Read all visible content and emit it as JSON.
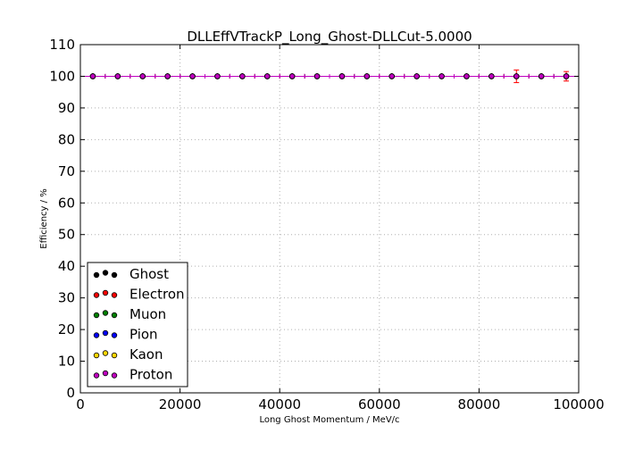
{
  "chart_data": {
    "type": "scatter",
    "title": "DLLEffVTrackP_Long_Ghost-DLLCut-5.0000",
    "xlabel": "Long Ghost Momentum / MeV/c",
    "ylabel": "Efficiency / %",
    "xlim": [
      0,
      100000
    ],
    "ylim": [
      0,
      110
    ],
    "xticks": [
      0,
      20000,
      40000,
      60000,
      80000,
      100000
    ],
    "yticks": [
      0,
      10,
      20,
      30,
      40,
      50,
      60,
      70,
      80,
      90,
      100,
      110
    ],
    "grid": true,
    "legend_position": "lower-left",
    "x": [
      2500,
      7500,
      12500,
      17500,
      22500,
      27500,
      32500,
      37500,
      42500,
      47500,
      52500,
      57500,
      62500,
      67500,
      72500,
      77500,
      82500,
      87500,
      92500,
      97500
    ],
    "x_error": 2500,
    "series": [
      {
        "name": "Ghost",
        "color": "#000000",
        "values": [
          100,
          100,
          100,
          100,
          100,
          100,
          100,
          100,
          100,
          100,
          100,
          100,
          100,
          100,
          100,
          100,
          100,
          100,
          100,
          100
        ],
        "y_error": [
          0,
          0,
          0,
          0,
          0,
          0,
          0,
          0,
          0,
          0,
          0,
          0,
          0,
          0,
          0,
          0,
          0,
          0,
          0,
          0
        ]
      },
      {
        "name": "Electron",
        "color": "#ff0000",
        "values": [
          100,
          100,
          100,
          100,
          100,
          100,
          100,
          100,
          100,
          100,
          100,
          100,
          100,
          100,
          100,
          100,
          100,
          100,
          100,
          100
        ],
        "y_error": [
          0,
          0,
          0,
          0,
          0,
          0,
          0,
          0,
          0,
          0,
          0,
          0,
          0,
          0,
          0,
          0,
          0,
          2,
          0,
          1.5
        ]
      },
      {
        "name": "Muon",
        "color": "#008000",
        "values": [
          100,
          100,
          100,
          100,
          100,
          100,
          100,
          100,
          100,
          100,
          100,
          100,
          100,
          100,
          100,
          100,
          100,
          100,
          100,
          100
        ],
        "y_error": [
          0,
          0,
          0,
          0,
          0,
          0,
          0,
          0,
          0,
          0,
          0,
          0,
          0,
          0,
          0,
          0,
          0,
          0,
          0,
          0
        ]
      },
      {
        "name": "Pion",
        "color": "#0000ff",
        "values": [
          100,
          100,
          100,
          100,
          100,
          100,
          100,
          100,
          100,
          100,
          100,
          100,
          100,
          100,
          100,
          100,
          100,
          100,
          100,
          100
        ],
        "y_error": [
          0,
          0,
          0,
          0,
          0,
          0,
          0,
          0,
          0,
          0,
          0,
          0,
          0,
          0,
          0,
          0,
          0,
          0,
          0,
          0
        ]
      },
      {
        "name": "Kaon",
        "color": "#ffd700",
        "values": [
          100,
          100,
          100,
          100,
          100,
          100,
          100,
          100,
          100,
          100,
          100,
          100,
          100,
          100,
          100,
          100,
          100,
          100,
          100,
          100
        ],
        "y_error": [
          0,
          0,
          0,
          0,
          0,
          0,
          0,
          0,
          0,
          0,
          0,
          0,
          0,
          0,
          0,
          0,
          0,
          0,
          0,
          0
        ]
      },
      {
        "name": "Proton",
        "color": "#bf00bf",
        "values": [
          100,
          100,
          100,
          100,
          100,
          100,
          100,
          100,
          100,
          100,
          100,
          100,
          100,
          100,
          100,
          100,
          100,
          100,
          100,
          100
        ],
        "y_error": [
          0,
          0,
          0,
          0,
          0,
          0,
          0,
          0,
          0,
          0,
          0,
          0,
          0,
          0,
          0,
          0,
          0,
          0,
          0,
          0
        ]
      }
    ]
  }
}
